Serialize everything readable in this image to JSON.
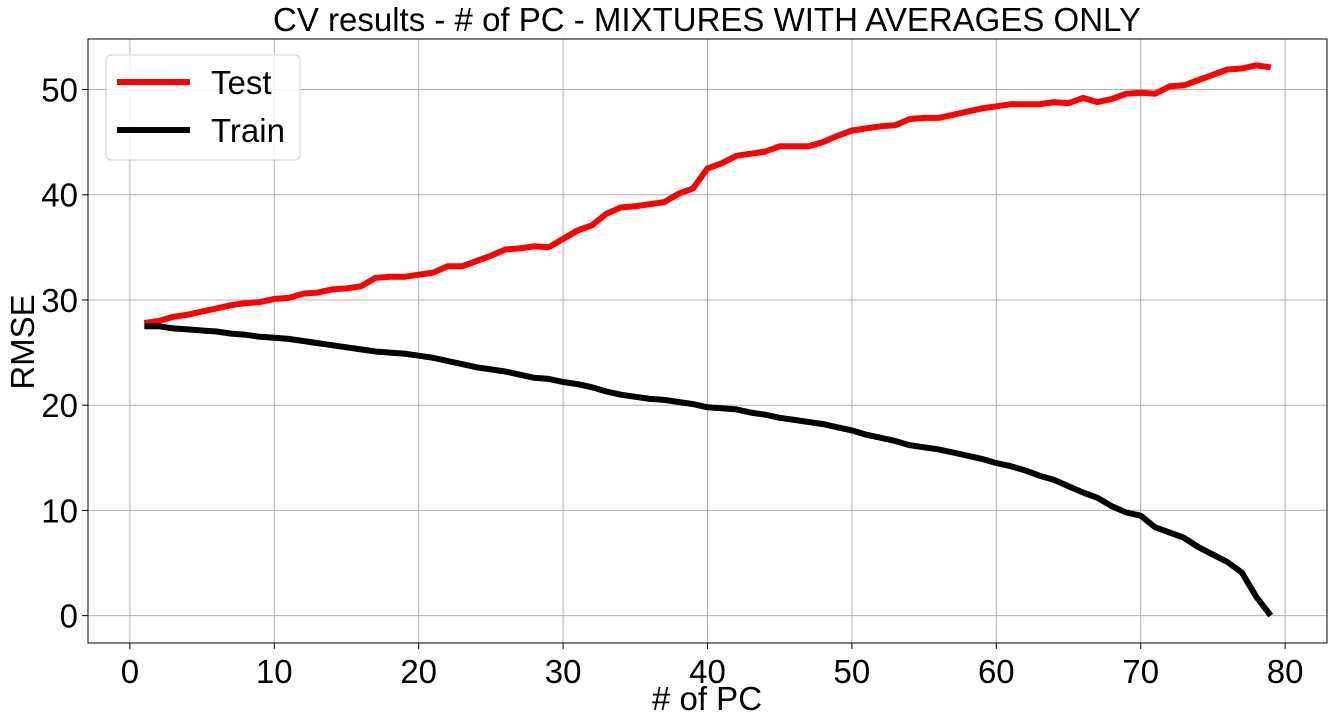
{
  "chart_data": {
    "type": "line",
    "title": "CV results - # of PC - MIXTURES WITH AVERAGES ONLY",
    "xlabel": "# of PC",
    "ylabel": "RMSE",
    "xlim": [
      -2.9,
      82.9
    ],
    "ylim": [
      -2.6,
      54.8
    ],
    "xticks": [
      0,
      10,
      20,
      30,
      40,
      50,
      60,
      70,
      80
    ],
    "yticks": [
      0,
      10,
      20,
      30,
      40,
      50
    ],
    "grid": true,
    "legend_position": "top-left",
    "series": [
      {
        "name": "Test",
        "color": "#ff0000",
        "x": [
          1,
          2,
          3,
          4,
          5,
          6,
          7,
          8,
          9,
          10,
          11,
          12,
          13,
          14,
          15,
          16,
          17,
          18,
          19,
          20,
          21,
          22,
          23,
          24,
          25,
          26,
          27,
          28,
          29,
          30,
          31,
          32,
          33,
          34,
          35,
          36,
          37,
          38,
          39,
          40,
          41,
          42,
          43,
          44,
          45,
          46,
          47,
          48,
          49,
          50,
          51,
          52,
          53,
          54,
          55,
          56,
          57,
          58,
          59,
          60,
          61,
          62,
          63,
          64,
          65,
          66,
          67,
          68,
          69,
          70,
          71,
          72,
          73,
          74,
          75,
          76,
          77,
          78,
          79
        ],
        "values": [
          27.8,
          28.0,
          28.4,
          28.6,
          28.9,
          29.2,
          29.5,
          29.7,
          29.8,
          30.1,
          30.2,
          30.6,
          30.7,
          31.0,
          31.1,
          31.3,
          32.1,
          32.2,
          32.2,
          32.4,
          32.6,
          33.2,
          33.2,
          33.7,
          34.2,
          34.8,
          34.9,
          35.1,
          35.0,
          35.8,
          36.6,
          37.1,
          38.2,
          38.8,
          38.9,
          39.1,
          39.3,
          40.1,
          40.6,
          42.5,
          43.0,
          43.7,
          43.9,
          44.1,
          44.6,
          44.6,
          44.6,
          45.0,
          45.6,
          46.1,
          46.3,
          46.5,
          46.6,
          47.2,
          47.3,
          47.3,
          47.6,
          47.9,
          48.2,
          48.4,
          48.6,
          48.6,
          48.6,
          48.8,
          48.7,
          49.2,
          48.8,
          49.1,
          49.6,
          49.7,
          49.6,
          50.3,
          50.4,
          50.9,
          51.4,
          51.9,
          52.0,
          52.3,
          52.1
        ]
      },
      {
        "name": "Train",
        "color": "#000000",
        "x": [
          1,
          2,
          3,
          4,
          5,
          6,
          7,
          8,
          9,
          10,
          11,
          12,
          13,
          14,
          15,
          16,
          17,
          18,
          19,
          20,
          21,
          22,
          23,
          24,
          25,
          26,
          27,
          28,
          29,
          30,
          31,
          32,
          33,
          34,
          35,
          36,
          37,
          38,
          39,
          40,
          41,
          42,
          43,
          44,
          45,
          46,
          47,
          48,
          49,
          50,
          51,
          52,
          53,
          54,
          55,
          56,
          57,
          58,
          59,
          60,
          61,
          62,
          63,
          64,
          65,
          66,
          67,
          68,
          69,
          70,
          71,
          72,
          73,
          74,
          75,
          76,
          77,
          78,
          79
        ],
        "values": [
          27.5,
          27.5,
          27.3,
          27.2,
          27.1,
          27.0,
          26.8,
          26.7,
          26.5,
          26.4,
          26.3,
          26.1,
          25.9,
          25.7,
          25.5,
          25.3,
          25.1,
          25.0,
          24.9,
          24.7,
          24.5,
          24.2,
          23.9,
          23.6,
          23.4,
          23.2,
          22.9,
          22.6,
          22.5,
          22.2,
          22.0,
          21.7,
          21.3,
          21.0,
          20.8,
          20.6,
          20.5,
          20.3,
          20.1,
          19.8,
          19.7,
          19.6,
          19.3,
          19.1,
          18.8,
          18.6,
          18.4,
          18.2,
          17.9,
          17.6,
          17.2,
          16.9,
          16.6,
          16.2,
          16.0,
          15.8,
          15.5,
          15.2,
          14.9,
          14.5,
          14.2,
          13.8,
          13.3,
          12.9,
          12.3,
          11.7,
          11.2,
          10.4,
          9.8,
          9.5,
          8.4,
          7.9,
          7.4,
          6.5,
          5.8,
          5.1,
          4.1,
          1.8,
          0.0
        ]
      }
    ]
  }
}
